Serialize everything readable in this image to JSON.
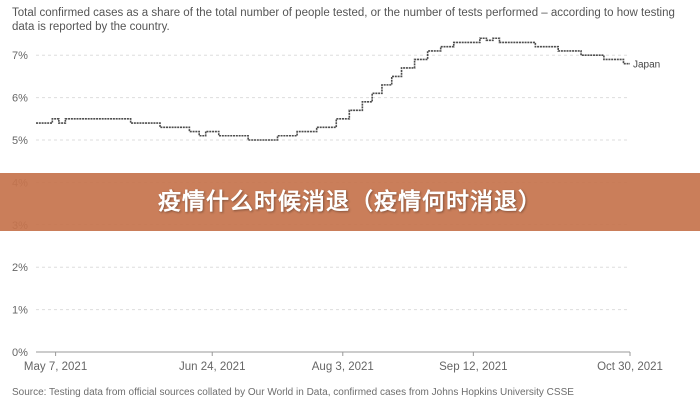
{
  "page": {
    "subtitle": "Total confirmed cases as a share of the total number of people tested, or the number of tests performed – according to how testing data is reported by the country.",
    "source": "Source: Testing data from official sources collated by Our World in Data, confirmed cases from Johns Hopkins University CSSE",
    "banner_title": "疫情什么时候消退（疫情何时消退）"
  },
  "colors": {
    "line": "#4d4d4d",
    "grid": "#dddddd",
    "axis_text": "#666666",
    "banner": "#c6744e"
  },
  "chart_data": {
    "type": "line",
    "title": "",
    "xlabel": "",
    "ylabel": "",
    "x_ticks": [
      "May 7, 2021",
      "Jun 24, 2021",
      "Aug 3, 2021",
      "Sep 12, 2021",
      "Oct 30, 2021"
    ],
    "y_ticks": [
      "0%",
      "1%",
      "2%",
      "3%",
      "4%",
      "5%",
      "6%",
      "7%"
    ],
    "ylim": [
      0,
      7.5
    ],
    "x_range": [
      "2021-05-01",
      "2021-10-30"
    ],
    "grid": "horizontal-dashed",
    "series": [
      {
        "name": "Japan",
        "x": [
          "2021-05-01",
          "2021-05-04",
          "2021-05-06",
          "2021-05-08",
          "2021-05-10",
          "2021-05-20",
          "2021-05-30",
          "2021-06-08",
          "2021-06-17",
          "2021-06-20",
          "2021-06-22",
          "2021-06-26",
          "2021-07-05",
          "2021-07-09",
          "2021-07-14",
          "2021-07-20",
          "2021-07-26",
          "2021-08-01",
          "2021-08-05",
          "2021-08-09",
          "2021-08-12",
          "2021-08-15",
          "2021-08-18",
          "2021-08-21",
          "2021-08-25",
          "2021-08-29",
          "2021-09-02",
          "2021-09-06",
          "2021-09-10",
          "2021-09-14",
          "2021-09-16",
          "2021-09-18",
          "2021-09-20",
          "2021-09-22",
          "2021-10-01",
          "2021-10-08",
          "2021-10-15",
          "2021-10-22",
          "2021-10-28",
          "2021-10-30"
        ],
        "values": [
          5.4,
          5.4,
          5.5,
          5.4,
          5.5,
          5.5,
          5.4,
          5.3,
          5.2,
          5.1,
          5.2,
          5.1,
          5.0,
          5.0,
          5.1,
          5.2,
          5.3,
          5.5,
          5.7,
          5.9,
          6.1,
          6.3,
          6.5,
          6.7,
          6.9,
          7.1,
          7.2,
          7.3,
          7.3,
          7.4,
          7.35,
          7.4,
          7.3,
          7.3,
          7.2,
          7.1,
          7.0,
          6.9,
          6.8,
          6.8
        ]
      }
    ]
  }
}
